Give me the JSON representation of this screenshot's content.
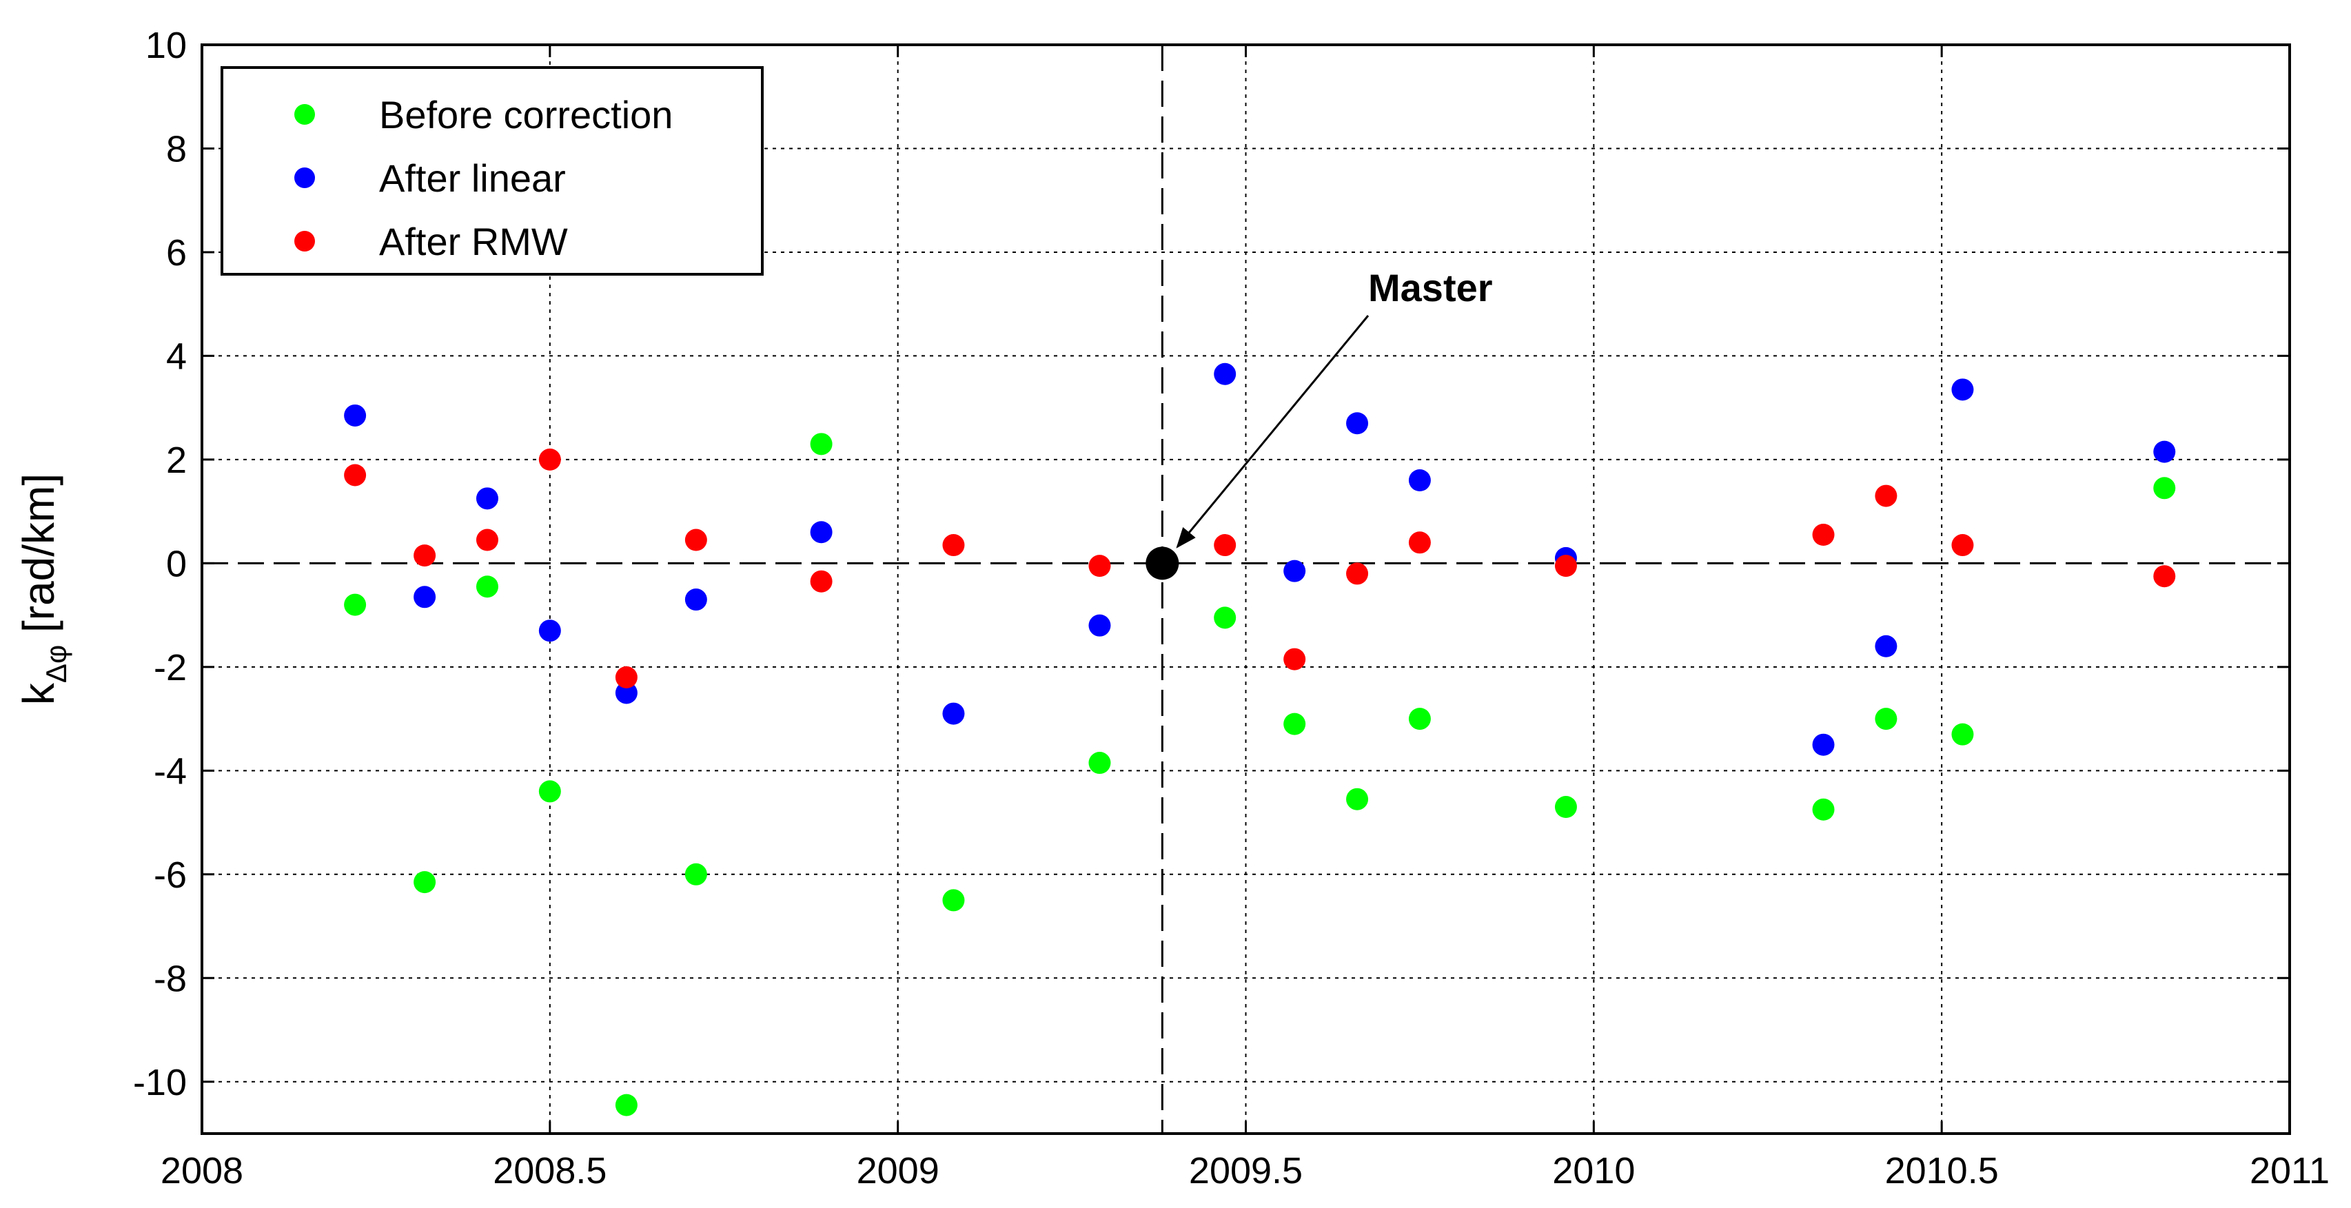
{
  "chart_data": {
    "type": "scatter",
    "title": "",
    "xlabel": "",
    "ylabel": {
      "prefix": "k",
      "subscript": "Δφ",
      "suffix": " [rad/km]"
    },
    "xlim": [
      2008,
      2011
    ],
    "ylim": [
      -11,
      10
    ],
    "xticks": [
      2008,
      2008.5,
      2009,
      2009.5,
      2010,
      2010.5,
      2011
    ],
    "xtick_labels": [
      "2008",
      "2008.5",
      "2009",
      "2009.5",
      "2010",
      "2010.5",
      "2011"
    ],
    "yticks": [
      10,
      8,
      6,
      4,
      2,
      0,
      -2,
      -4,
      -6,
      -8,
      -10
    ],
    "ytick_labels": [
      "10",
      "8",
      "6",
      "4",
      "2",
      "0",
      "-2",
      "-4",
      "-6",
      "-8",
      "-10"
    ],
    "grid": true,
    "legend_position": "top-left",
    "series": [
      {
        "name": "Before correction",
        "color": "#00ff00",
        "points": [
          {
            "x": 2008.22,
            "y": -0.8
          },
          {
            "x": 2008.32,
            "y": -6.15
          },
          {
            "x": 2008.41,
            "y": -0.45
          },
          {
            "x": 2008.5,
            "y": -4.4
          },
          {
            "x": 2008.61,
            "y": -10.45
          },
          {
            "x": 2008.71,
            "y": -6.0
          },
          {
            "x": 2008.89,
            "y": 2.3
          },
          {
            "x": 2009.08,
            "y": -6.5
          },
          {
            "x": 2009.29,
            "y": -3.85
          },
          {
            "x": 2009.47,
            "y": -1.05
          },
          {
            "x": 2009.57,
            "y": -3.1
          },
          {
            "x": 2009.66,
            "y": -4.55
          },
          {
            "x": 2009.75,
            "y": -3.0
          },
          {
            "x": 2009.96,
            "y": -4.7
          },
          {
            "x": 2010.33,
            "y": -4.75
          },
          {
            "x": 2010.42,
            "y": -3.0
          },
          {
            "x": 2010.53,
            "y": -3.3
          },
          {
            "x": 2010.82,
            "y": 1.45
          }
        ]
      },
      {
        "name": "After linear",
        "color": "#0000ff",
        "points": [
          {
            "x": 2008.22,
            "y": 2.85
          },
          {
            "x": 2008.32,
            "y": -0.65
          },
          {
            "x": 2008.41,
            "y": 1.25
          },
          {
            "x": 2008.5,
            "y": -1.3
          },
          {
            "x": 2008.61,
            "y": -2.5
          },
          {
            "x": 2008.71,
            "y": -0.7
          },
          {
            "x": 2008.89,
            "y": 0.6
          },
          {
            "x": 2009.08,
            "y": -2.9
          },
          {
            "x": 2009.29,
            "y": -1.2
          },
          {
            "x": 2009.47,
            "y": 3.65
          },
          {
            "x": 2009.57,
            "y": -0.15
          },
          {
            "x": 2009.66,
            "y": 2.7
          },
          {
            "x": 2009.75,
            "y": 1.6
          },
          {
            "x": 2009.96,
            "y": 0.1
          },
          {
            "x": 2010.33,
            "y": -3.5
          },
          {
            "x": 2010.42,
            "y": -1.6
          },
          {
            "x": 2010.53,
            "y": 3.35
          },
          {
            "x": 2010.82,
            "y": 2.15
          }
        ]
      },
      {
        "name": "After RMW",
        "color": "#ff0000",
        "points": [
          {
            "x": 2008.22,
            "y": 1.7
          },
          {
            "x": 2008.32,
            "y": 0.15
          },
          {
            "x": 2008.41,
            "y": 0.45
          },
          {
            "x": 2008.5,
            "y": 2.0
          },
          {
            "x": 2008.61,
            "y": -2.2
          },
          {
            "x": 2008.71,
            "y": 0.45
          },
          {
            "x": 2008.89,
            "y": -0.35
          },
          {
            "x": 2009.08,
            "y": 0.35
          },
          {
            "x": 2009.29,
            "y": -0.05
          },
          {
            "x": 2009.47,
            "y": 0.35
          },
          {
            "x": 2009.57,
            "y": -1.85
          },
          {
            "x": 2009.66,
            "y": -0.2
          },
          {
            "x": 2009.75,
            "y": 0.4
          },
          {
            "x": 2009.96,
            "y": -0.05
          },
          {
            "x": 2010.33,
            "y": 0.55
          },
          {
            "x": 2010.42,
            "y": 1.3
          },
          {
            "x": 2010.53,
            "y": 0.35
          },
          {
            "x": 2010.82,
            "y": -0.25
          }
        ]
      }
    ],
    "master": {
      "x": 2009.38,
      "y": 0,
      "color": "#000000"
    },
    "reference_lines": {
      "vertical_x": 2009.38,
      "horizontal_y": 0
    },
    "annotations": [
      {
        "text": "Master",
        "points_to": {
          "x": 2009.38,
          "y": 0
        }
      }
    ]
  }
}
